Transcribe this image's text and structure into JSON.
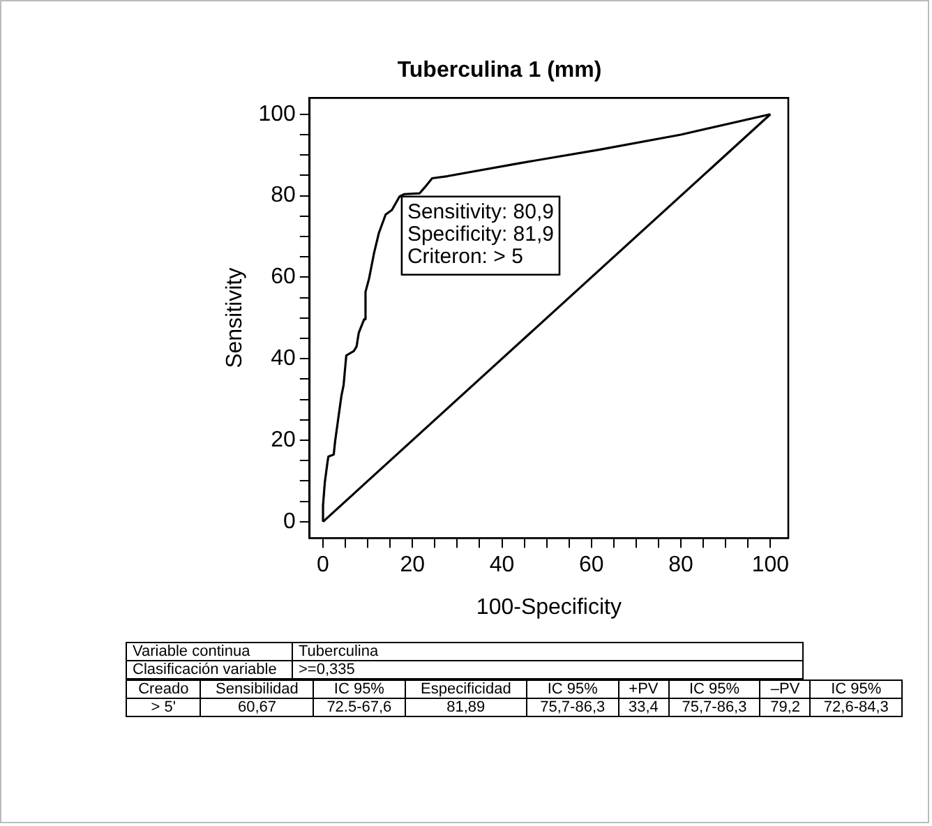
{
  "chart_data": {
    "type": "line",
    "title": "Tuberculina 1 (mm)",
    "xlabel": "100-Specificity",
    "ylabel": "Sensitivity",
    "xlim": [
      -3,
      104
    ],
    "ylim": [
      -4,
      104
    ],
    "xticks": [
      0,
      {
        "value": 5,
        "label": null
      },
      {
        "value": 10,
        "label": null
      },
      {
        "value": 15,
        "label": null
      },
      20,
      {
        "value": 25,
        "label": null
      },
      {
        "value": 30,
        "label": null
      },
      {
        "value": 35,
        "label": null
      },
      40,
      {
        "value": 45,
        "label": null
      },
      {
        "value": 50,
        "label": null
      },
      {
        "value": 55,
        "label": null
      },
      60,
      {
        "value": 65,
        "label": null
      },
      {
        "value": 70,
        "label": null
      },
      {
        "value": 75,
        "label": null
      },
      80,
      {
        "value": 85,
        "label": null
      },
      {
        "value": 90,
        "label": null
      },
      {
        "value": 95,
        "label": null
      },
      100
    ],
    "yticks": [
      0,
      {
        "value": 5,
        "label": null
      },
      {
        "value": 10,
        "label": null
      },
      {
        "value": 15,
        "label": null
      },
      20,
      {
        "value": 25,
        "label": null
      },
      {
        "value": 30,
        "label": null
      },
      {
        "value": 35,
        "label": null
      },
      40,
      {
        "value": 45,
        "label": null
      },
      {
        "value": 50,
        "label": null
      },
      {
        "value": 55,
        "label": null
      },
      60,
      {
        "value": 65,
        "label": null
      },
      {
        "value": 70,
        "label": null
      },
      {
        "value": 75,
        "label": null
      },
      80,
      {
        "value": 85,
        "label": null
      },
      {
        "value": 90,
        "label": null
      },
      {
        "value": 95,
        "label": null
      },
      100
    ],
    "series": [
      {
        "color": "#000000",
        "x": [
          0,
          0,
          0.4,
          1,
          1.2,
          2.4,
          2.7,
          4.1,
          4.6,
          5.2,
          6.9,
          7.5,
          8,
          9.2,
          9.5,
          10.3,
          11.4,
          12.5,
          14,
          15.4,
          17.1,
          18.2,
          21.6,
          22.7,
          24.4,
          27.8,
          44,
          61.7,
          80,
          100
        ],
        "values": [
          0,
          4,
          9.6,
          14.6,
          16,
          16.5,
          19.7,
          30.8,
          33.5,
          40.8,
          41.9,
          43,
          46.4,
          49.7,
          56.4,
          59.7,
          65.9,
          70.9,
          75.4,
          76.5,
          79.8,
          80.4,
          80.6,
          82,
          84.3,
          84.8,
          88,
          91.3,
          95,
          100
        ]
      },
      {
        "color": "#000000",
        "x": [
          0,
          100
        ],
        "values": [
          0,
          100
        ]
      }
    ],
    "grid": false,
    "legend": false,
    "marker": "none",
    "line_style": "solid",
    "annotations": [
      {
        "text": "Sensitivity: 80,9\nSpecificity: 81,9\nCriteron: > 5",
        "x": 17.6,
        "y": 79.8
      },
      "Variable continua",
      "Tuberculina",
      "Clasificación variable",
      ">=0,335",
      "Creado",
      "Sensibilidad",
      "IC 95%",
      "Especificidad",
      "IC 95%",
      "+PV",
      "IC 95%",
      "–PV",
      "IC 95%",
      "> 5'",
      "60,67",
      "72.5-67,6",
      "81,89",
      "75,7-86,3",
      "33,4",
      "75,7-86,3",
      "79,2",
      "72,6-84,3"
    ]
  }
}
